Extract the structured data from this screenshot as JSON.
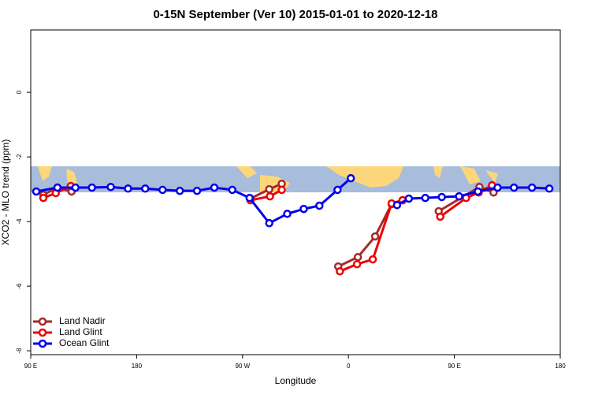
{
  "chart_data": {
    "type": "line",
    "title": "0-15N September (Ver 10)   2015-01-01 to 2020-12-18",
    "x_label": "Longitude",
    "y_label": "XCO2 - MLO trend (ppm)",
    "xlim": [
      90,
      540
    ],
    "xticks": [
      {
        "value": 90,
        "label": "90 E"
      },
      {
        "value": 180,
        "label": "180"
      },
      {
        "value": 270,
        "label": "90 W"
      },
      {
        "value": 360,
        "label": "0"
      },
      {
        "value": 450,
        "label": "90 E"
      },
      {
        "value": 540,
        "label": "180"
      }
    ],
    "ylim": [
      -8.12,
      1.93
    ],
    "yticks": [
      0,
      -2,
      -4,
      -6,
      -8
    ],
    "legend": "bottom-left",
    "series": [
      {
        "name": "Land Nadir",
        "color": "#a52a2a",
        "x": [
          100.7,
          112.7,
          124.7,
          null,
          276.7,
          292.7,
          303.3,
          null,
          351.3,
          368,
          382.7,
          396.7,
          406,
          null,
          436.7,
          471.3,
          483.3
        ],
        "values": [
          -3.17,
          -2.95,
          -3.07,
          null,
          -3.29,
          -3.0,
          -2.83,
          null,
          -5.39,
          -5.1,
          -4.46,
          -3.46,
          -3.34,
          null,
          -3.68,
          -2.93,
          -3.1
        ]
      },
      {
        "name": "Land Glint",
        "color": "#ee0000",
        "x": [
          100.7,
          111.3,
          124,
          null,
          276.7,
          293.3,
          303.3,
          null,
          352.7,
          367.3,
          380.7,
          396.7,
          406,
          null,
          438,
          460,
          470.7,
          482
        ],
        "values": [
          -3.27,
          -3.12,
          -2.9,
          null,
          -3.34,
          -3.22,
          -3.02,
          null,
          -5.54,
          -5.32,
          -5.17,
          -3.44,
          -3.34,
          null,
          -3.85,
          -3.27,
          -3.1,
          -2.88
        ]
      },
      {
        "name": "Ocean Glint",
        "color": "#0000ee",
        "x": [
          94.7,
          112.7,
          128,
          142,
          158,
          172.7,
          187.3,
          202,
          216.7,
          231.3,
          246,
          261.3,
          276,
          292.7,
          308,
          322,
          335.3,
          350.7,
          362,
          null,
          401.3,
          411.3,
          425.3,
          439.3,
          454,
          470,
          486.7,
          500.7,
          516,
          530.7
        ],
        "values": [
          -3.07,
          -2.95,
          -2.95,
          -2.95,
          -2.93,
          -2.98,
          -2.98,
          -3.02,
          -3.05,
          -3.05,
          -2.95,
          -3.02,
          -3.27,
          -4.05,
          -3.76,
          -3.61,
          -3.51,
          -3.02,
          -2.66,
          null,
          -3.49,
          -3.29,
          -3.27,
          -3.24,
          -3.22,
          -3.07,
          -2.95,
          -2.95,
          -2.95,
          -2.98
        ]
      }
    ]
  }
}
